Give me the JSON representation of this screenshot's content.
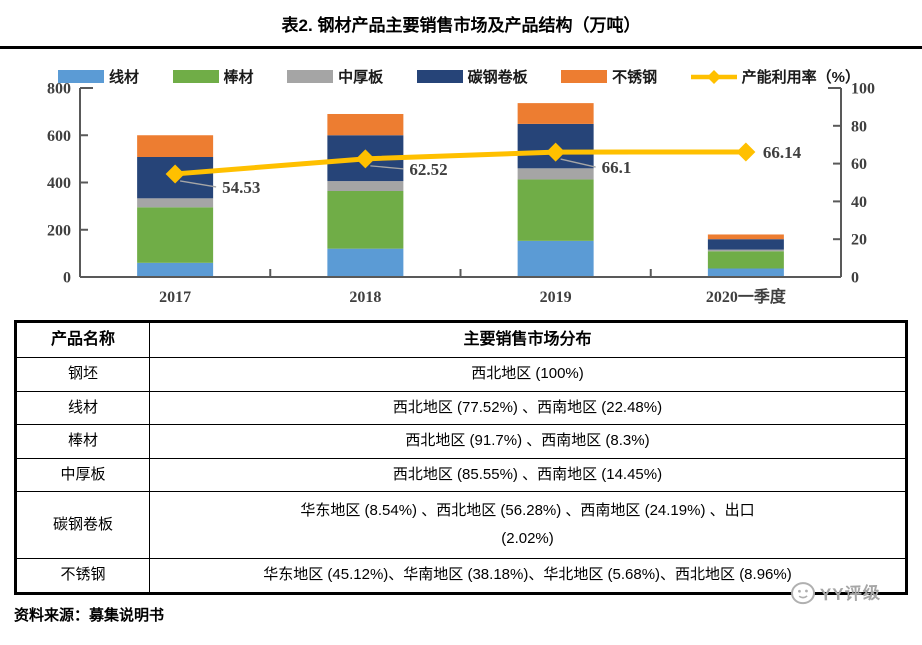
{
  "page": {
    "title": "表2. 钢材产品主要销售市场及产品结构（万吨）"
  },
  "chart_data": {
    "type": "bar",
    "subtype": "stacked-bar-with-line",
    "categories": [
      "2017",
      "2018",
      "2019",
      "2020一季度"
    ],
    "series": [
      {
        "name": "线材",
        "color": "#5B9BD5",
        "values": [
          60,
          120,
          153,
          36
        ]
      },
      {
        "name": "棒材",
        "color": "#70AD47",
        "values": [
          235,
          244,
          260,
          73
        ]
      },
      {
        "name": "中厚板",
        "color": "#A5A5A5",
        "values": [
          38,
          42,
          47,
          7
        ]
      },
      {
        "name": "碳钢卷板",
        "color": "#264478",
        "values": [
          175,
          194,
          188,
          44
        ]
      },
      {
        "name": "不锈钢",
        "color": "#ED7D31",
        "values": [
          92,
          90,
          88,
          20
        ]
      }
    ],
    "line_series": {
      "name": "产能利用率（%）",
      "color": "#FFC000",
      "marker": "diamond",
      "axis": "right",
      "values": [
        54.53,
        62.52,
        66.1,
        66.14
      ],
      "labels": [
        "54.53",
        "62.52",
        "66.1",
        "66.14"
      ]
    },
    "left_axis": {
      "min": 0,
      "max": 800,
      "ticks": [
        0,
        200,
        400,
        600,
        800
      ]
    },
    "right_axis": {
      "min": 0,
      "max": 100,
      "ticks": [
        0,
        20,
        40,
        60,
        80,
        100
      ]
    },
    "grid": false,
    "legend_position": "top"
  },
  "table": {
    "headers": [
      "产品名称",
      "主要销售市场分布"
    ],
    "rows": [
      {
        "product": "钢坯",
        "markets": "西北地区 (100%)"
      },
      {
        "product": "线材",
        "markets": "西北地区 (77.52%) 、西南地区 (22.48%)"
      },
      {
        "product": "棒材",
        "markets": "西北地区 (91.7%) 、西南地区 (8.3%)"
      },
      {
        "product": "中厚板",
        "markets": "西北地区 (85.55%) 、西南地区 (14.45%)"
      },
      {
        "product": "碳钢卷板",
        "markets": "华东地区 (8.54%) 、西北地区 (56.28%) 、西南地区 (24.19%) 、出口\n(2.02%)"
      },
      {
        "product": "不锈钢",
        "markets": "华东地区 (45.12%)、华南地区 (38.18%)、华北地区 (5.68%)、西北地区 (8.96%)"
      }
    ]
  },
  "footer": {
    "source": "资料来源：募集说明书",
    "watermark": "YY评级"
  }
}
